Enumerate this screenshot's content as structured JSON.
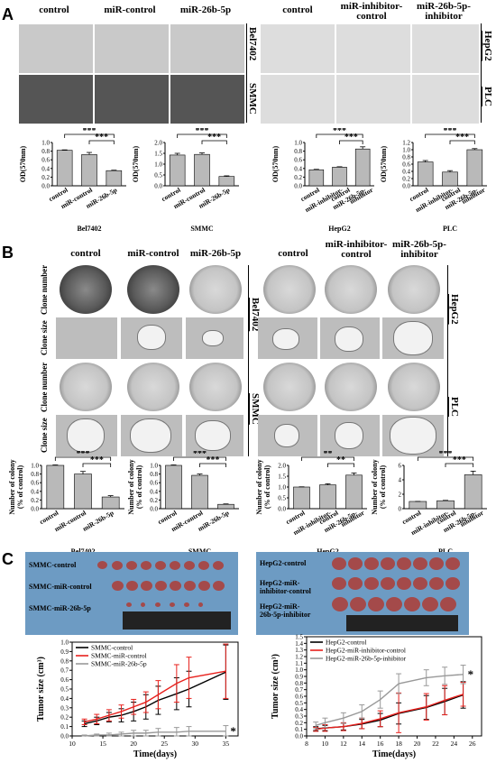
{
  "panel_letters": {
    "a": "A",
    "b": "B",
    "c": "C"
  },
  "panelA": {
    "left_headers": [
      "control",
      "miR-control",
      "miR-26b-5p"
    ],
    "right_headers": [
      "control",
      "miR-inhibitor-\ncontrol",
      "miR-26b-5p-\ninhibitor"
    ],
    "left_rows": [
      "Bel7402",
      "SMMC"
    ],
    "right_rows": [
      "HepG2",
      "PLC"
    ]
  },
  "panelB": {
    "left_headers": [
      "control",
      "miR-control",
      "miR-26b-5p"
    ],
    "right_headers": [
      "control",
      "miR-inhibitor-\ncontrol",
      "miR-26b-5p-\ninhibitor"
    ],
    "row_types": [
      "Clone number",
      "Clone size",
      "Clone number",
      "Clone size"
    ],
    "left_rows": [
      "Bel7402",
      "SMMC"
    ],
    "right_rows": [
      "HepG2",
      "PLC"
    ]
  },
  "panelC": {
    "left_photo_labels": [
      "SMMC-control",
      "SMMC-miR-control",
      "SMMC-miR-26b-5p"
    ],
    "right_photo_labels": [
      "HepG2-control",
      "HepG2-miR-\ninhibitor-control",
      "HepG2-miR-\n26b-5p-inhibitor"
    ]
  },
  "chart_data": [
    {
      "type": "bar",
      "ylabel": "OD(570nm)",
      "xlabel": "Bel7402",
      "categories": [
        "control",
        "miR-control",
        "miR-26b-5p"
      ],
      "values": [
        0.82,
        0.72,
        0.35
      ],
      "errors": [
        0.01,
        0.05,
        0.01
      ],
      "ylim": [
        0,
        1.0
      ],
      "yticks": [
        0.0,
        0.2,
        0.4,
        0.6,
        0.8,
        1.0
      ],
      "sig": [
        "***",
        "***"
      ]
    },
    {
      "type": "bar",
      "ylabel": "OD(570nm)",
      "xlabel": "SMMC",
      "categories": [
        "control",
        "miR-control",
        "miR-26b-5p"
      ],
      "values": [
        1.42,
        1.45,
        0.43
      ],
      "errors": [
        0.08,
        0.07,
        0.03
      ],
      "ylim": [
        0,
        2.0
      ],
      "yticks": [
        0.0,
        0.5,
        1.0,
        1.5,
        2.0
      ],
      "sig": [
        "***",
        "***"
      ]
    },
    {
      "type": "bar",
      "ylabel": "OD(570nm)",
      "xlabel": "HepG2",
      "categories": [
        "control",
        "miR-inhibitor-\ncontrol",
        "miR-26b-5p-\ninhibitor"
      ],
      "values": [
        0.37,
        0.43,
        0.85
      ],
      "errors": [
        0.01,
        0.01,
        0.05
      ],
      "ylim": [
        0,
        1.0
      ],
      "yticks": [
        0.0,
        0.2,
        0.4,
        0.6,
        0.8,
        1.0
      ],
      "sig": [
        "***",
        "***"
      ]
    },
    {
      "type": "bar",
      "ylabel": "OD(570nm)",
      "xlabel": "PLC",
      "categories": [
        "control",
        "miR-inhibitor-\ncontrol",
        "miR-26b-5p-\ninhibitor"
      ],
      "values": [
        0.66,
        0.38,
        1.0
      ],
      "errors": [
        0.04,
        0.04,
        0.03
      ],
      "ylim": [
        0,
        1.2
      ],
      "yticks": [
        0.0,
        0.2,
        0.4,
        0.6,
        0.8,
        1.0,
        1.2
      ],
      "sig": [
        "***",
        "***"
      ]
    },
    {
      "type": "bar",
      "ylabel": "Number of colony\n(% of control)",
      "xlabel": "Bel7402",
      "categories": [
        "control",
        "miR-control",
        "miR-26b-5p"
      ],
      "values": [
        1.0,
        0.8,
        0.27
      ],
      "errors": [
        0.01,
        0.06,
        0.03
      ],
      "ylim": [
        0,
        1.0
      ],
      "yticks": [
        0.0,
        0.2,
        0.4,
        0.6,
        0.8,
        1.0
      ],
      "sig": [
        "***",
        "***"
      ]
    },
    {
      "type": "bar",
      "ylabel": "Number of colony\n(% of control)",
      "xlabel": "SMMC",
      "categories": [
        "control",
        "miR-control",
        "miR-26b-5p"
      ],
      "values": [
        1.0,
        0.77,
        0.1
      ],
      "errors": [
        0.01,
        0.03,
        0.01
      ],
      "ylim": [
        0,
        1.0
      ],
      "yticks": [
        0.0,
        0.2,
        0.4,
        0.6,
        0.8,
        1.0
      ],
      "sig": [
        "***",
        "***"
      ]
    },
    {
      "type": "bar",
      "ylabel": "Number of colony\n(% of control)",
      "xlabel": "HepG2",
      "categories": [
        "control",
        "miR-inhibitor-\ncontrol",
        "miR-26b-5p-\ninhibitor"
      ],
      "values": [
        1.0,
        1.1,
        1.55
      ],
      "errors": [
        0.01,
        0.05,
        0.1
      ],
      "ylim": [
        0,
        2.0
      ],
      "yticks": [
        0.0,
        0.5,
        1.0,
        1.5,
        2.0
      ],
      "sig": [
        "**",
        "**"
      ]
    },
    {
      "type": "bar",
      "ylabel": "Number of colony\n(% of control)",
      "xlabel": "PLC",
      "categories": [
        "control",
        "miR-inhibitor-\ncontrol",
        "miR-26b-5p-\ninhibitor"
      ],
      "values": [
        1.0,
        1.1,
        4.7
      ],
      "errors": [
        0.01,
        0.05,
        0.5
      ],
      "ylim": [
        0,
        6
      ],
      "yticks": [
        0,
        2,
        4,
        6
      ],
      "sig": [
        "***",
        "***"
      ]
    },
    {
      "type": "line",
      "ylabel": "Tumor size (cm³)",
      "xlabel": "Time(days)",
      "x": [
        12,
        14,
        16,
        18,
        20,
        22,
        24,
        27,
        29,
        35
      ],
      "xlim": [
        10,
        37
      ],
      "xticks": [
        10,
        15,
        20,
        25,
        30,
        35
      ],
      "ylim": [
        0,
        1.0
      ],
      "yticks": [
        0.0,
        0.1,
        0.2,
        0.3,
        0.4,
        0.5,
        0.6,
        0.7,
        0.8,
        0.9,
        1.0
      ],
      "series": [
        {
          "name": "SMMC-control",
          "color": "#000000",
          "values": [
            0.13,
            0.16,
            0.2,
            0.22,
            0.26,
            0.31,
            0.38,
            0.45,
            0.5,
            0.68
          ],
          "errors": [
            0.03,
            0.04,
            0.05,
            0.07,
            0.1,
            0.13,
            0.15,
            0.17,
            0.19,
            0.29
          ]
        },
        {
          "name": "SMMC-miR-control",
          "color": "#e8211d",
          "values": [
            0.15,
            0.18,
            0.22,
            0.26,
            0.31,
            0.36,
            0.44,
            0.56,
            0.62,
            0.69
          ],
          "errors": [
            0.03,
            0.05,
            0.06,
            0.07,
            0.08,
            0.11,
            0.15,
            0.2,
            0.22,
            0.29
          ]
        },
        {
          "name": "SMMC-miR-26b-5p",
          "color": "#999999",
          "values": [
            0.0,
            0.01,
            0.01,
            0.02,
            0.03,
            0.03,
            0.04,
            0.04,
            0.05,
            0.05
          ],
          "errors": [
            0.01,
            0.01,
            0.02,
            0.02,
            0.03,
            0.03,
            0.04,
            0.05,
            0.05,
            0.06
          ]
        }
      ],
      "annotation": "*"
    },
    {
      "type": "line",
      "ylabel": "Tumor size (cm³)",
      "xlabel": "Time(days)",
      "x": [
        9,
        10,
        12,
        14,
        16,
        18,
        21,
        23,
        25
      ],
      "xlim": [
        8,
        27
      ],
      "xticks": [
        8,
        10,
        12,
        14,
        16,
        18,
        20,
        22,
        24,
        26
      ],
      "ylim": [
        0,
        1.5
      ],
      "yticks": [
        0.0,
        0.1,
        0.2,
        0.3,
        0.4,
        0.5,
        0.6,
        0.7,
        0.8,
        0.9,
        1.0,
        1.1,
        1.2,
        1.3,
        1.4,
        1.5
      ],
      "series": [
        {
          "name": "HepG2-control",
          "color": "#000000",
          "values": [
            0.11,
            0.12,
            0.14,
            0.18,
            0.24,
            0.34,
            0.43,
            0.52,
            0.62
          ],
          "errors": [
            0.03,
            0.04,
            0.05,
            0.07,
            0.1,
            0.16,
            0.18,
            0.2,
            0.2
          ]
        },
        {
          "name": "HepG2-miR-inhibitor-control",
          "color": "#e8211d",
          "values": [
            0.1,
            0.12,
            0.14,
            0.19,
            0.26,
            0.35,
            0.44,
            0.54,
            0.63
          ],
          "errors": [
            0.03,
            0.05,
            0.06,
            0.08,
            0.12,
            0.3,
            0.2,
            0.22,
            0.18
          ]
        },
        {
          "name": "HepG2-miR-26b-5p-inhibitor",
          "color": "#999999",
          "values": [
            0.16,
            0.2,
            0.27,
            0.37,
            0.55,
            0.79,
            0.88,
            0.91,
            0.93
          ],
          "errors": [
            0.05,
            0.07,
            0.08,
            0.1,
            0.13,
            0.15,
            0.12,
            0.13,
            0.14
          ]
        }
      ],
      "annotation": "*"
    }
  ]
}
